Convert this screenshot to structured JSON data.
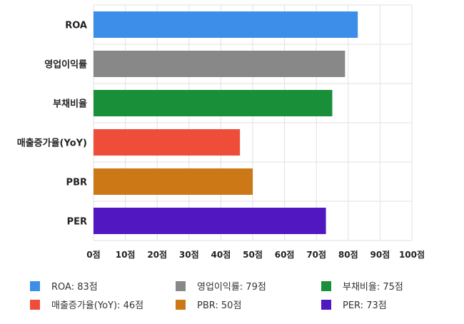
{
  "chart_data": {
    "type": "bar",
    "orientation": "horizontal",
    "categories": [
      "ROA",
      "영업이익률",
      "부채비율",
      "매출증가율(YoY)",
      "PBR",
      "PER"
    ],
    "values": [
      83,
      79,
      75,
      46,
      50,
      73
    ],
    "colors": [
      "#3c8ee8",
      "#888888",
      "#1a8f3a",
      "#ee4d3a",
      "#cc7817",
      "#5118c2"
    ],
    "xlim": [
      0,
      100
    ],
    "xticks": [
      "0점",
      "10점",
      "20점",
      "30점",
      "40점",
      "50점",
      "60점",
      "70점",
      "80점",
      "90점",
      "100점"
    ],
    "grid": true,
    "legend_position": "bottom",
    "legend": [
      "ROA: 83점",
      "영업이익률: 79점",
      "부채비율: 75점",
      "매출증가율(YoY): 46점",
      "PBR: 50점",
      "PER: 73점"
    ]
  }
}
